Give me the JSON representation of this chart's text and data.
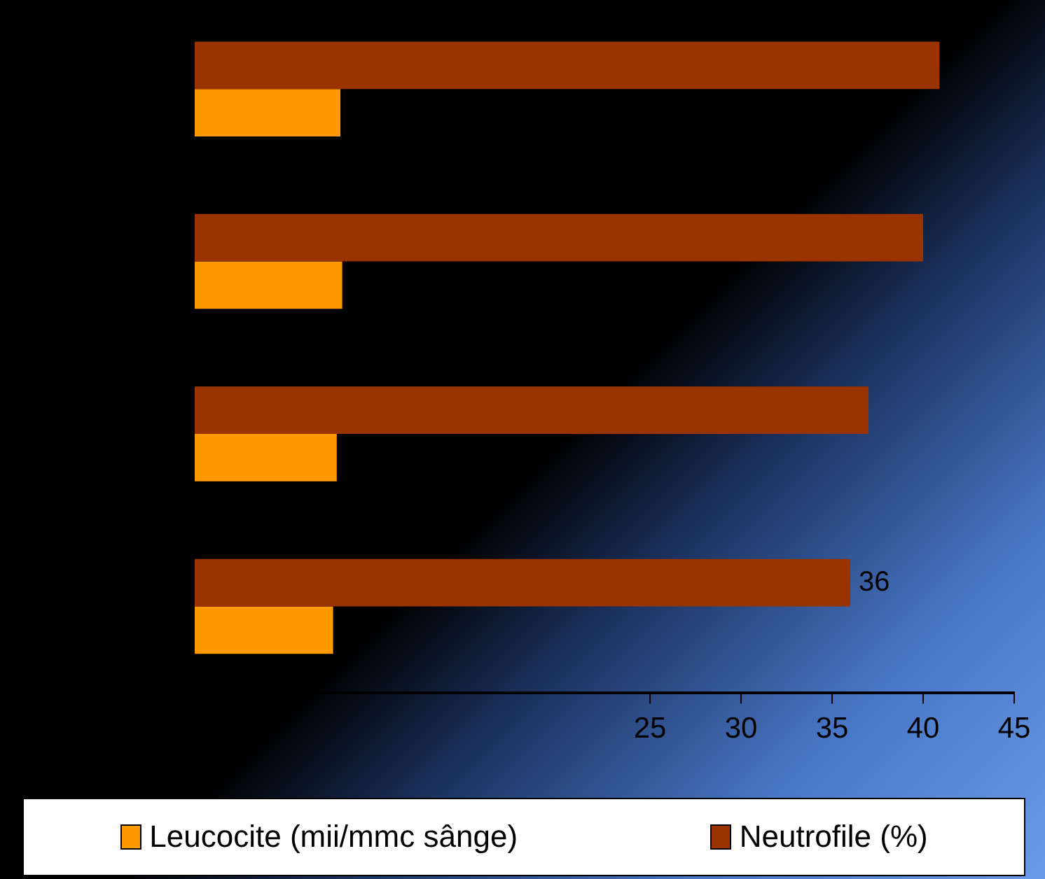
{
  "chart_data": {
    "type": "bar",
    "orientation": "horizontal",
    "categories": [
      null,
      null,
      null,
      null
    ],
    "series": [
      {
        "name": "Neutrofile (%)",
        "color": "#993300",
        "values": [
          40.9,
          40,
          37,
          36
        ],
        "value_labels": [
          null,
          null,
          null,
          "36"
        ]
      },
      {
        "name": "Leucocite (mii/mmc sânge)",
        "color": "#ff9900",
        "values": [
          8,
          8.1,
          7.8,
          7.6
        ]
      }
    ],
    "xlim": [
      0,
      45
    ],
    "xticks": [
      25,
      30,
      35,
      40,
      45
    ],
    "grid": false,
    "legend": "bottom"
  }
}
